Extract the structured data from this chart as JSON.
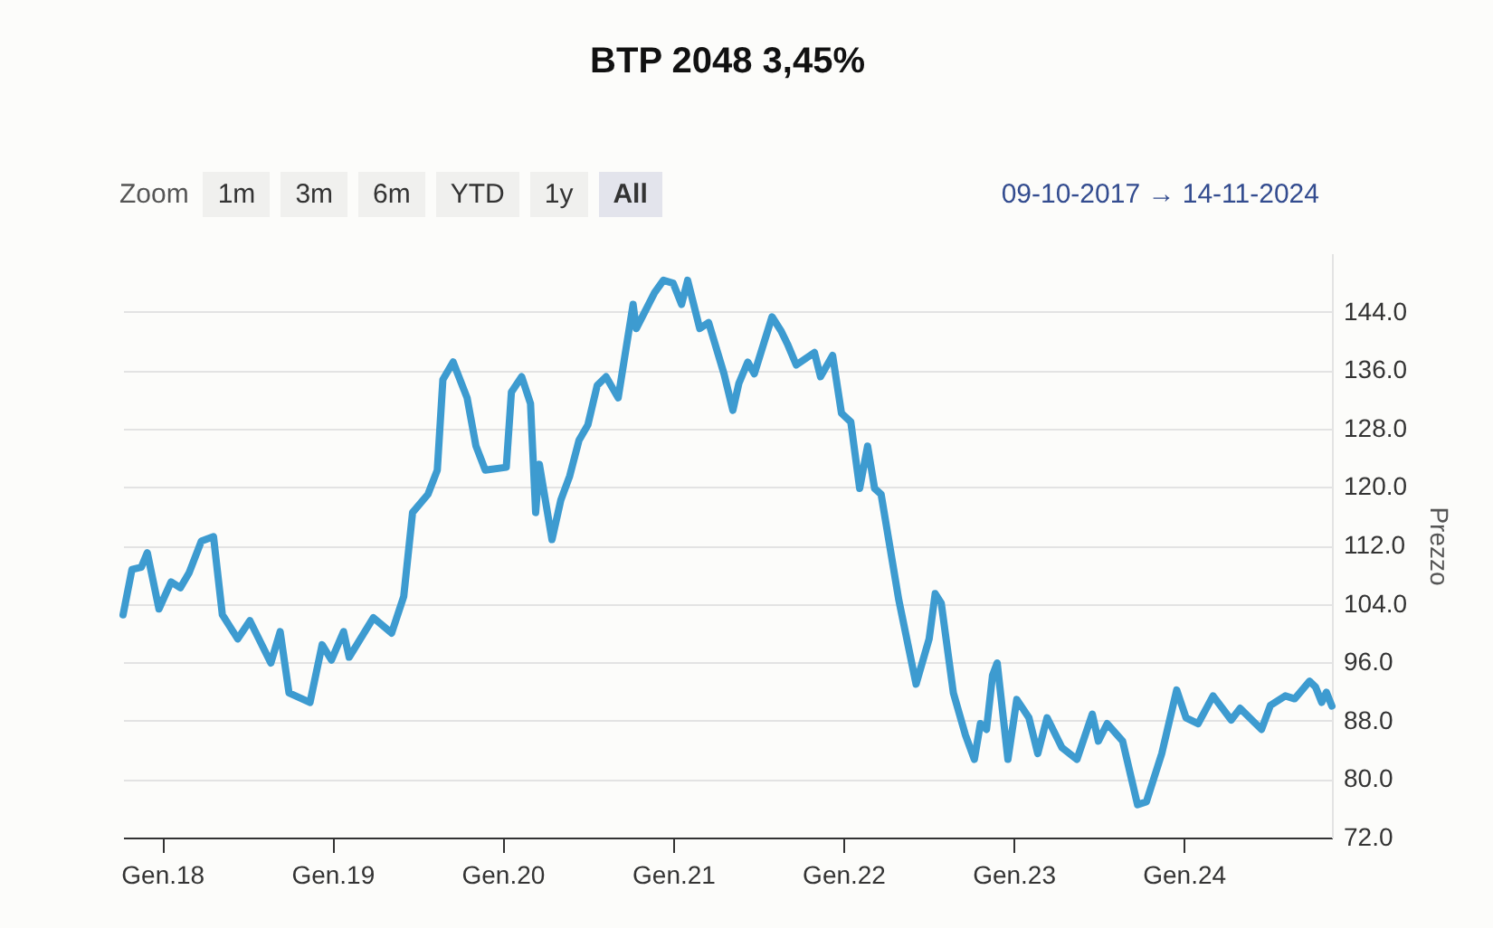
{
  "chart_data": {
    "type": "line",
    "title": "BTP 2048 3,45%",
    "ylabel": "Prezzo",
    "annotations": [
      "Zoom",
      "1m",
      "3m",
      "6m",
      "YTD",
      "1y",
      "All",
      "09-10-2017 → 14-11-2024"
    ],
    "x": [
      "2017-10-09",
      "2017-10-28",
      "2017-11-17",
      "2017-11-30",
      "2017-12-25",
      "2018-01-20",
      "2018-02-09",
      "2018-02-28",
      "2018-03-26",
      "2018-04-21",
      "2018-05-10",
      "2018-06-12",
      "2018-07-08",
      "2018-08-22",
      "2018-09-11",
      "2018-09-30",
      "2018-11-14",
      "2018-12-10",
      "2018-12-30",
      "2019-01-25",
      "2019-02-06",
      "2019-03-30",
      "2019-05-08",
      "2019-06-03",
      "2019-06-22",
      "2019-07-25",
      "2019-08-14",
      "2019-08-26",
      "2019-09-17",
      "2019-10-17",
      "2019-11-05",
      "2019-11-25",
      "2020-01-09",
      "2020-01-20",
      "2020-02-11",
      "2020-03-01",
      "2020-03-12",
      "2020-03-20",
      "2020-04-16",
      "2020-05-05",
      "2020-05-24",
      "2020-06-13",
      "2020-07-02",
      "2020-07-22",
      "2020-08-10",
      "2020-09-05",
      "2020-10-07",
      "2020-10-14",
      "2020-11-22",
      "2020-12-11",
      "2021-01-01",
      "2021-01-19",
      "2021-02-01",
      "2021-02-27",
      "2021-03-18",
      "2021-04-20",
      "2021-05-09",
      "2021-05-22",
      "2021-06-10",
      "2021-06-24",
      "2021-08-01",
      "2021-08-21",
      "2021-09-03",
      "2021-09-22",
      "2021-10-31",
      "2021-11-13",
      "2021-12-09",
      "2021-12-28",
      "2022-01-17",
      "2022-02-05",
      "2022-02-22",
      "2022-03-09",
      "2022-03-23",
      "2022-04-30",
      "2022-06-06",
      "2022-07-04",
      "2022-07-17",
      "2022-07-30",
      "2022-08-25",
      "2022-09-20",
      "2022-10-09",
      "2022-10-22",
      "2022-11-04",
      "2022-11-17",
      "2022-11-27",
      "2022-12-20",
      "2023-01-08",
      "2023-02-03",
      "2023-02-22",
      "2023-03-14",
      "2023-04-15",
      "2023-05-17",
      "2023-06-19",
      "2023-07-02",
      "2023-07-21",
      "2023-08-23",
      "2023-09-24",
      "2023-10-13",
      "2023-11-15",
      "2023-12-17",
      "2024-01-06",
      "2024-02-01",
      "2024-03-04",
      "2024-04-12",
      "2024-05-01",
      "2024-06-16",
      "2024-07-05",
      "2024-08-06",
      "2024-08-26",
      "2024-09-27",
      "2024-10-10",
      "2024-10-23",
      "2024-11-02",
      "2024-11-14"
    ],
    "series": [
      {
        "color": "#3d9bd0",
        "values": [
          102.5,
          108.7,
          109.0,
          111.0,
          103.3,
          107.0,
          106.2,
          108.3,
          112.6,
          113.2,
          102.5,
          99.2,
          101.7,
          95.9,
          100.2,
          91.8,
          90.5,
          98.4,
          96.3,
          100.2,
          96.7,
          102.1,
          100.0,
          105.0,
          116.5,
          119.0,
          122.3,
          134.7,
          137.1,
          132.2,
          125.6,
          122.3,
          122.7,
          133.0,
          135.1,
          131.4,
          116.5,
          123.1,
          112.8,
          118.2,
          121.5,
          126.4,
          128.5,
          133.9,
          135.1,
          132.2,
          145.0,
          141.7,
          146.6,
          148.3,
          147.9,
          145.0,
          148.3,
          141.7,
          142.5,
          135.5,
          130.5,
          134.2,
          137.1,
          135.5,
          143.3,
          141.3,
          139.6,
          136.7,
          138.4,
          135.1,
          138.0,
          130.1,
          128.9,
          119.8,
          125.6,
          119.8,
          119.0,
          104.5,
          93.0,
          99.2,
          105.4,
          104.1,
          91.8,
          86.0,
          82.7,
          87.6,
          86.8,
          94.2,
          95.9,
          82.7,
          90.9,
          88.4,
          83.5,
          88.4,
          84.3,
          82.7,
          88.9,
          85.2,
          87.6,
          85.2,
          76.5,
          76.9,
          83.5,
          92.2,
          88.4,
          87.6,
          91.4,
          88.1,
          89.7,
          86.8,
          90.1,
          91.4,
          91.0,
          93.4,
          92.6,
          90.5,
          91.9,
          90.0
        ]
      }
    ],
    "xlim": [
      "2017-10-09",
      "2024-11-14"
    ],
    "xticks": [
      {
        "value": "2018-01-01",
        "label": "Gen.18"
      },
      {
        "value": "2019-01-01",
        "label": "Gen.19"
      },
      {
        "value": "2020-01-01",
        "label": "Gen.20"
      },
      {
        "value": "2021-01-01",
        "label": "Gen.21"
      },
      {
        "value": "2022-01-01",
        "label": "Gen.22"
      },
      {
        "value": "2023-01-01",
        "label": "Gen.23"
      },
      {
        "value": "2024-01-01",
        "label": "Gen.24"
      }
    ],
    "ylim": [
      72,
      152
    ],
    "yticks": [
      {
        "value": 72,
        "label": "72.0"
      },
      {
        "value": 80,
        "label": "80.0"
      },
      {
        "value": 88,
        "label": "88.0"
      },
      {
        "value": 96,
        "label": "96.0"
      },
      {
        "value": 104,
        "label": "104.0"
      },
      {
        "value": 112,
        "label": "112.0"
      },
      {
        "value": 120,
        "label": "120.0"
      },
      {
        "value": 128,
        "label": "128.0"
      },
      {
        "value": 136,
        "label": "136.0"
      },
      {
        "value": 144,
        "label": "144.0"
      }
    ],
    "grid": "y",
    "line_style": "solid"
  }
}
